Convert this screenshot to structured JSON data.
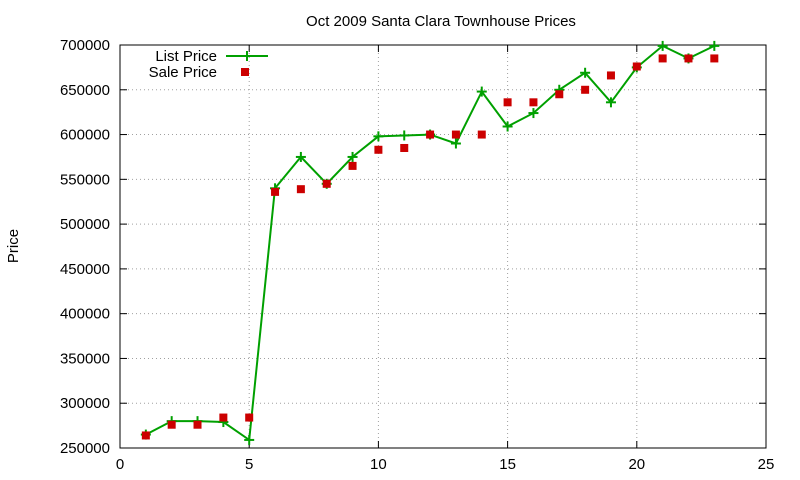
{
  "chart_data": {
    "type": "line",
    "title": "Oct 2009 Santa Clara Townhouse Prices",
    "xlabel": "",
    "ylabel": "Price",
    "xlim": [
      0,
      25
    ],
    "ylim": [
      250000,
      700000
    ],
    "xticks": [
      0,
      5,
      10,
      15,
      20,
      25
    ],
    "yticks": [
      250000,
      300000,
      350000,
      400000,
      450000,
      500000,
      550000,
      600000,
      650000,
      700000
    ],
    "grid": true,
    "legend_position": "top-left",
    "series": [
      {
        "name": "List Price",
        "style": "line-with-plus-markers",
        "color": "#00a000",
        "x": [
          1,
          2,
          3,
          4,
          5,
          6,
          7,
          8,
          9,
          10,
          11,
          12,
          13,
          14,
          15,
          16,
          17,
          18,
          19,
          20,
          21,
          22,
          23
        ],
        "values": [
          265000,
          280000,
          280000,
          279000,
          259000,
          540000,
          575000,
          545000,
          575000,
          598000,
          599000,
          600000,
          590000,
          648000,
          609000,
          624000,
          650000,
          669000,
          636000,
          675000,
          699000,
          685000,
          699000
        ]
      },
      {
        "name": "Sale Price",
        "style": "square-markers",
        "color": "#cc0000",
        "x": [
          1,
          2,
          3,
          4,
          5,
          6,
          7,
          8,
          9,
          10,
          11,
          12,
          13,
          14,
          15,
          16,
          17,
          18,
          19,
          20,
          21,
          22,
          23
        ],
        "values": [
          264000,
          276000,
          276000,
          284000,
          284000,
          536000,
          539000,
          545000,
          565000,
          583000,
          585000,
          600000,
          600000,
          600000,
          636000,
          636000,
          645000,
          650000,
          666000,
          676000,
          685000,
          685000,
          685000
        ]
      }
    ]
  }
}
